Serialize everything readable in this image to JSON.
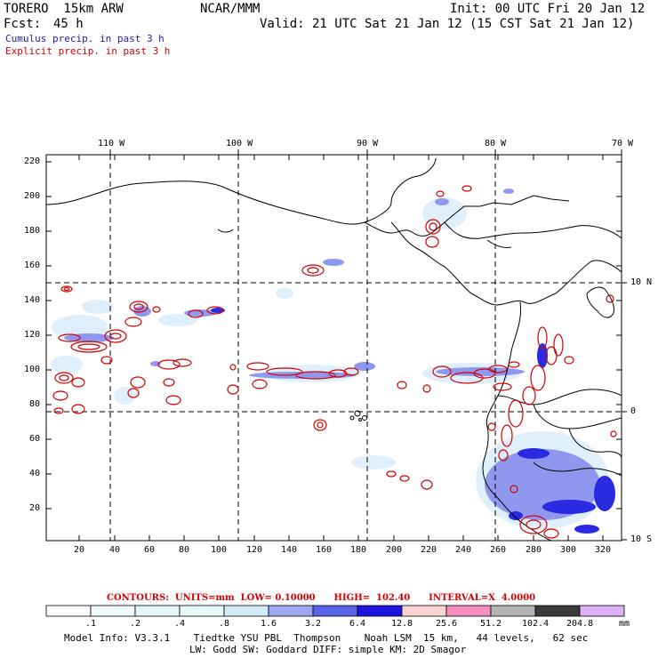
{
  "header": {
    "model": "TORERO  15km ARW",
    "org": "NCAR/MMM",
    "init": "Init: 00 UTC Fri 20 Jan 12",
    "fcst_label": "Fcst:",
    "fcst_value": "45 h",
    "valid": "Valid: 21 UTC Sat 21 Jan 12 (15 CST Sat 21 Jan 12)",
    "cumulus": "Cumulus precip. in past 3 h",
    "explicit": "Explicit precip. in past 3 h"
  },
  "map": {
    "lon_labels": [
      "110 W",
      "100 W",
      "90 W",
      "80 W",
      "70 W"
    ],
    "lat_labels": [
      "10 N",
      "0",
      "10 S"
    ],
    "y_ticks": [
      "220",
      "200",
      "180",
      "160",
      "140",
      "120",
      "100",
      "80",
      "60",
      "40",
      "20"
    ],
    "x_ticks": [
      "20",
      "40",
      "60",
      "80",
      "100",
      "120",
      "140",
      "160",
      "180",
      "200",
      "220",
      "240",
      "260",
      "280",
      "300",
      "320"
    ]
  },
  "contours_text": "CONTOURS:  UNITS=mm  LOW= 0.10000      HIGH=  102.40      INTERVAL=X  4.0000",
  "colorbar": {
    "labels": [
      ".1",
      ".2",
      ".4",
      ".8",
      "1.6",
      "3.2",
      "6.4",
      "12.8",
      "25.6",
      "51.2",
      "102.4",
      "204.8"
    ],
    "unit": "mm",
    "colors": [
      "#ffffff",
      "#f0fbfd",
      "#e5f7fb",
      "#e6fdf8",
      "#d1ecf7",
      "#9ea7f2",
      "#5a62e6",
      "#1e14e0",
      "#fbd3d3",
      "#f58ebc",
      "#b4b4b4",
      "#3b3b3b",
      "#dcb0f5"
    ]
  },
  "footer": {
    "line1": "Model Info: V3.3.1    Tiedtke YSU PBL  Thompson    Noah LSM  15 km,   44 levels,   62 sec",
    "line2": "LW: Godd SW: Goddard DIFF: simple KM: 2D Smagor"
  }
}
